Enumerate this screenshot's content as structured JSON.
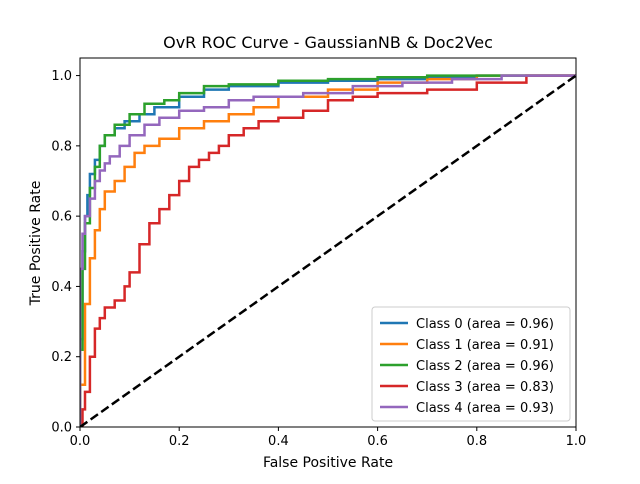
{
  "chart_data": {
    "type": "line",
    "title": "OvR ROC Curve - GaussianNB & Doc2Vec",
    "xlabel": "False Positive Rate",
    "ylabel": "True Positive Rate",
    "xlim": [
      0.0,
      1.0
    ],
    "ylim": [
      0.0,
      1.05
    ],
    "xticks": [
      0.0,
      0.2,
      0.4,
      0.6,
      0.8,
      1.0
    ],
    "xtick_labels": [
      "0.0",
      "0.2",
      "0.4",
      "0.6",
      "0.8",
      "1.0"
    ],
    "yticks": [
      0.0,
      0.2,
      0.4,
      0.6,
      0.8,
      1.0
    ],
    "ytick_labels": [
      "0.0",
      "0.2",
      "0.4",
      "0.6",
      "0.8",
      "1.0"
    ],
    "grid": false,
    "legend_position": "lower-right",
    "series": [
      {
        "name": "Class 0 (area = 0.96)",
        "color": "#1f77b4",
        "x": [
          0.0,
          0.0,
          0.005,
          0.01,
          0.015,
          0.02,
          0.03,
          0.04,
          0.05,
          0.07,
          0.09,
          0.12,
          0.15,
          0.2,
          0.25,
          0.3,
          0.4,
          0.5,
          0.6,
          0.7,
          0.8,
          0.9,
          1.0
        ],
        "y": [
          0.0,
          0.25,
          0.5,
          0.6,
          0.66,
          0.72,
          0.76,
          0.8,
          0.83,
          0.85,
          0.87,
          0.89,
          0.91,
          0.94,
          0.96,
          0.97,
          0.98,
          0.985,
          0.99,
          0.995,
          1.0,
          1.0,
          1.0
        ]
      },
      {
        "name": "Class 1 (area = 0.91)",
        "color": "#ff7f0e",
        "x": [
          0.0,
          0.0,
          0.01,
          0.02,
          0.03,
          0.04,
          0.05,
          0.07,
          0.09,
          0.11,
          0.13,
          0.16,
          0.2,
          0.25,
          0.3,
          0.35,
          0.4,
          0.5,
          0.6,
          0.7,
          0.8,
          0.9,
          1.0
        ],
        "y": [
          0.0,
          0.12,
          0.35,
          0.48,
          0.56,
          0.62,
          0.67,
          0.7,
          0.74,
          0.78,
          0.8,
          0.82,
          0.85,
          0.87,
          0.89,
          0.91,
          0.94,
          0.96,
          0.98,
          0.99,
          1.0,
          1.0,
          1.0
        ]
      },
      {
        "name": "Class 2 (area = 0.96)",
        "color": "#2ca02c",
        "x": [
          0.0,
          0.0,
          0.005,
          0.01,
          0.02,
          0.03,
          0.04,
          0.05,
          0.07,
          0.1,
          0.13,
          0.17,
          0.2,
          0.25,
          0.3,
          0.4,
          0.5,
          0.6,
          0.7,
          0.8,
          1.0
        ],
        "y": [
          0.0,
          0.22,
          0.45,
          0.58,
          0.68,
          0.74,
          0.8,
          0.83,
          0.86,
          0.89,
          0.92,
          0.93,
          0.95,
          0.97,
          0.975,
          0.985,
          0.99,
          0.995,
          1.0,
          1.0,
          1.0
        ]
      },
      {
        "name": "Class 3 (area = 0.83)",
        "color": "#d62728",
        "x": [
          0.0,
          0.005,
          0.01,
          0.02,
          0.03,
          0.04,
          0.05,
          0.07,
          0.09,
          0.1,
          0.12,
          0.14,
          0.16,
          0.18,
          0.2,
          0.22,
          0.24,
          0.26,
          0.28,
          0.3,
          0.33,
          0.36,
          0.4,
          0.45,
          0.5,
          0.55,
          0.6,
          0.7,
          0.8,
          0.9,
          1.0
        ],
        "y": [
          0.0,
          0.05,
          0.1,
          0.2,
          0.28,
          0.31,
          0.34,
          0.36,
          0.4,
          0.44,
          0.52,
          0.58,
          0.62,
          0.66,
          0.7,
          0.74,
          0.76,
          0.78,
          0.8,
          0.83,
          0.85,
          0.87,
          0.88,
          0.9,
          0.93,
          0.94,
          0.95,
          0.96,
          0.98,
          1.0,
          1.0
        ]
      },
      {
        "name": "Class 4 (area = 0.93)",
        "color": "#9467bd",
        "x": [
          0.0,
          0.0,
          0.005,
          0.01,
          0.02,
          0.03,
          0.04,
          0.05,
          0.06,
          0.08,
          0.1,
          0.13,
          0.16,
          0.2,
          0.25,
          0.3,
          0.35,
          0.45,
          0.55,
          0.65,
          0.75,
          0.85,
          1.0
        ],
        "y": [
          0.0,
          0.45,
          0.55,
          0.6,
          0.65,
          0.7,
          0.73,
          0.75,
          0.77,
          0.8,
          0.83,
          0.86,
          0.88,
          0.9,
          0.91,
          0.93,
          0.94,
          0.95,
          0.97,
          0.98,
          0.99,
          1.0,
          1.0
        ]
      }
    ],
    "reference_line": {
      "x": [
        0.0,
        1.0
      ],
      "y": [
        0.0,
        1.0
      ],
      "color": "#000000",
      "style": "dashed"
    }
  }
}
